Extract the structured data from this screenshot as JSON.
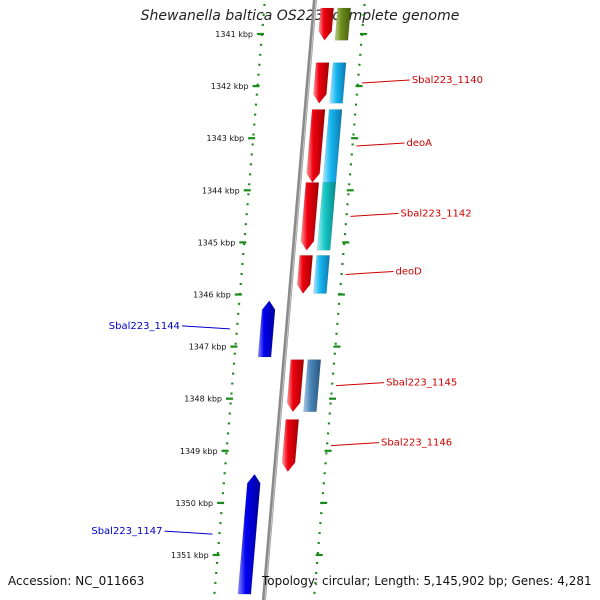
{
  "title": "Shewanella baltica OS223, complete genome",
  "footer": {
    "accession": "Accession: NC_011663",
    "stats": "Topology: circular; Length: 5,145,902 bp; Genes: 4,281"
  },
  "colors": {
    "forward_cds": "#e8000b",
    "reverse_cds": "#0000f0",
    "cog_blue": "#18b8f0",
    "cog_cyan": "#18c8c8",
    "cog_steel": "#4a86b8",
    "cog_olive": "#6e8c1e",
    "backbone": "#8a8a8a",
    "guide_dots": "#1a8a1a",
    "forward_label": "#cc0000",
    "reverse_label": "#0000cc"
  },
  "axis": {
    "unit": "kbp",
    "ticks": [
      "1341 kbp",
      "1342 kbp",
      "1343 kbp",
      "1344 kbp",
      "1345 kbp",
      "1346 kbp",
      "1347 kbp",
      "1348 kbp",
      "1349 kbp",
      "1350 kbp",
      "1351 kbp"
    ]
  },
  "genes": [
    {
      "label": "Sbal223_1140",
      "strand": "+",
      "start_kbp": 1341.55,
      "end_kbp": 1342.33,
      "cog_color": "cog_blue"
    },
    {
      "label": "deoA",
      "strand": "+",
      "start_kbp": 1342.45,
      "end_kbp": 1343.85,
      "cog_color": "cog_blue"
    },
    {
      "label": "Sbal223_1142",
      "strand": "+",
      "start_kbp": 1343.85,
      "end_kbp": 1345.15,
      "cog_color": "cog_cyan"
    },
    {
      "label": "deoD",
      "strand": "+",
      "start_kbp": 1345.25,
      "end_kbp": 1345.98,
      "cog_color": "cog_blue"
    },
    {
      "label": "Sbal223_1144",
      "strand": "-",
      "start_kbp": 1346.12,
      "end_kbp": 1347.2,
      "cog_color": ""
    },
    {
      "label": "Sbal223_1145",
      "strand": "+",
      "start_kbp": 1347.25,
      "end_kbp": 1348.25,
      "cog_color": "cog_steel"
    },
    {
      "label": "Sbal223_1146",
      "strand": "+",
      "start_kbp": 1348.4,
      "end_kbp": 1349.4,
      "cog_color": ""
    },
    {
      "label": "Sbal223_1147",
      "strand": "-",
      "start_kbp": 1349.45,
      "end_kbp": 1351.75,
      "cog_color": ""
    }
  ],
  "unlabeled_features": [
    {
      "strand": "+",
      "start_kbp": 1340.5,
      "end_kbp": 1341.12,
      "cog_color": "cog_olive"
    }
  ]
}
